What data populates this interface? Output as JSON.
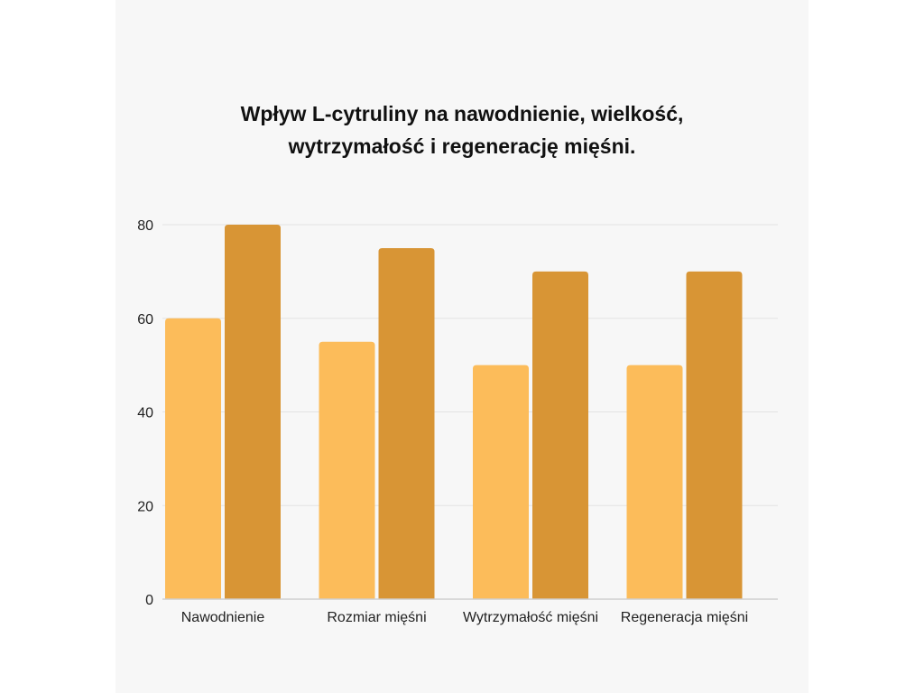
{
  "chart_data": {
    "type": "bar",
    "title_lines": [
      "Wpływ L-cytruliny na nawodnienie, wielkość,",
      "wytrzymałość i regenerację mięśni."
    ],
    "categories": [
      "Nawodnienie",
      "Rozmiar mięśni",
      "Wytrzymałość mięśni",
      "Regeneracja mięśni"
    ],
    "series": [
      {
        "values": [
          60,
          55,
          50,
          50
        ],
        "color": "#fcbc5a"
      },
      {
        "values": [
          80,
          75,
          70,
          70
        ],
        "color": "#d89535"
      }
    ],
    "yticks": [
      0,
      20,
      40,
      60,
      80
    ],
    "ylim": [
      0,
      80
    ],
    "grid": true,
    "legend": "none"
  }
}
